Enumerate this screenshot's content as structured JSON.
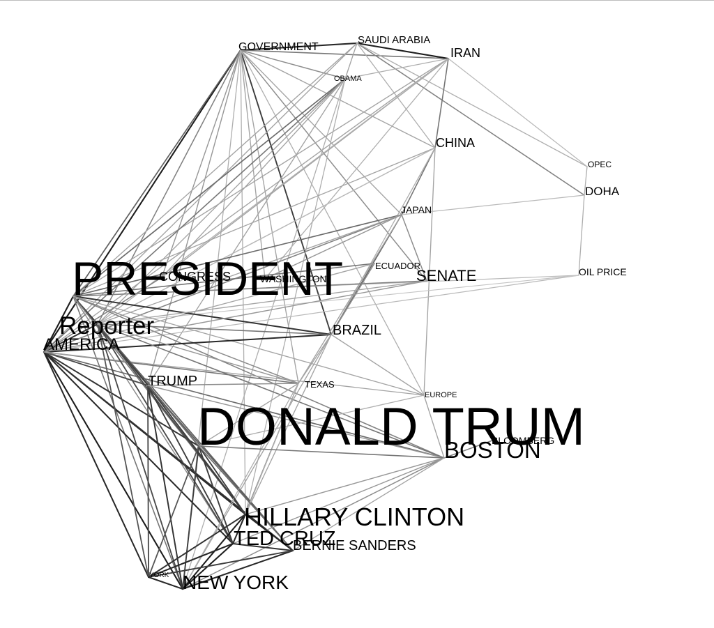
{
  "nodes": [
    {
      "id": "GOVERNMENT",
      "label": "GOVERNMENT"
    },
    {
      "id": "SAUDI_ARABIA",
      "label": "SAUDI ARABIA"
    },
    {
      "id": "IRAN",
      "label": "IRAN"
    },
    {
      "id": "OBAMA",
      "label": "OBAMA"
    },
    {
      "id": "CHINA",
      "label": "CHINA"
    },
    {
      "id": "OPEC",
      "label": "OPEC"
    },
    {
      "id": "DOHA",
      "label": "DOHA"
    },
    {
      "id": "JAPAN",
      "label": "JAPAN"
    },
    {
      "id": "ECUADOR",
      "label": "ECUADOR"
    },
    {
      "id": "PRESIDENT",
      "label": "PRESIDENT"
    },
    {
      "id": "CONGRESS",
      "label": "CONGRESS"
    },
    {
      "id": "WASHINGTON",
      "label": "WASHINGTON"
    },
    {
      "id": "SENATE",
      "label": "SENATE"
    },
    {
      "id": "OIL_PRICE",
      "label": "OIL PRICE"
    },
    {
      "id": "REPORTER",
      "label": "Reporter"
    },
    {
      "id": "BRAZIL",
      "label": "BRAZIL"
    },
    {
      "id": "AMERICA",
      "label": "AMERICA"
    },
    {
      "id": "TRUMP",
      "label": "TRUMP"
    },
    {
      "id": "TEXAS",
      "label": "TEXAS"
    },
    {
      "id": "EUROPE",
      "label": "EUROPE"
    },
    {
      "id": "DONALD_TRUMP",
      "label": "DONALD TRUM"
    },
    {
      "id": "BLOOMBERG",
      "label": "BLOOMBERG"
    },
    {
      "id": "BOSTON",
      "label": "BOSTON"
    },
    {
      "id": "HILLARY_CLINTON",
      "label": "HILLARY CLINTON"
    },
    {
      "id": "TED_CRUZ",
      "label": "TED CRUZ"
    },
    {
      "id": "BERNIE_SANDERS",
      "label": "BERNIE SANDERS"
    },
    {
      "id": "YORK",
      "label": "YORK"
    },
    {
      "id": "NEW_YORK",
      "label": "NEW YORK"
    }
  ],
  "edges": [
    [
      "GOVERNMENT",
      "SAUDI_ARABIA",
      0.85
    ],
    [
      "GOVERNMENT",
      "IRAN",
      0.5
    ],
    [
      "SAUDI_ARABIA",
      "IRAN",
      0.9
    ],
    [
      "GOVERNMENT",
      "AMERICA",
      0.9
    ],
    [
      "GOVERNMENT",
      "PRESIDENT",
      0.6
    ],
    [
      "GOVERNMENT",
      "REPORTER",
      0.45
    ],
    [
      "GOVERNMENT",
      "BRAZIL",
      0.75
    ],
    [
      "GOVERNMENT",
      "SENATE",
      0.4
    ],
    [
      "GOVERNMENT",
      "CONGRESS",
      0.35
    ],
    [
      "GOVERNMENT",
      "WASHINGTON",
      0.3
    ],
    [
      "GOVERNMENT",
      "JAPAN",
      0.3
    ],
    [
      "GOVERNMENT",
      "CHINA",
      0.3
    ],
    [
      "GOVERNMENT",
      "TRUMP",
      0.35
    ],
    [
      "GOVERNMENT",
      "TEXAS",
      0.3
    ],
    [
      "GOVERNMENT",
      "HILLARY_CLINTON",
      0.25
    ],
    [
      "GOVERNMENT",
      "OBAMA",
      0.4
    ],
    [
      "GOVERNMENT",
      "EUROPE",
      0.25
    ],
    [
      "GOVERNMENT",
      "NEW_YORK",
      0.25
    ],
    [
      "SAUDI_ARABIA",
      "OBAMA",
      0.3
    ],
    [
      "SAUDI_ARABIA",
      "PRESIDENT",
      0.3
    ],
    [
      "SAUDI_ARABIA",
      "DOHA",
      0.45
    ],
    [
      "SAUDI_ARABIA",
      "OPEC",
      0.25
    ],
    [
      "SAUDI_ARABIA",
      "AMERICA",
      0.3
    ],
    [
      "SAUDI_ARABIA",
      "CHINA",
      0.25
    ],
    [
      "IRAN",
      "CHINA",
      0.5
    ],
    [
      "IRAN",
      "PRESIDENT",
      0.3
    ],
    [
      "IRAN",
      "OBAMA",
      0.25
    ],
    [
      "IRAN",
      "AMERICA",
      0.3
    ],
    [
      "IRAN",
      "CONGRESS",
      0.3
    ],
    [
      "IRAN",
      "OPEC",
      0.2
    ],
    [
      "IRAN",
      "REPORTER",
      0.25
    ],
    [
      "IRAN",
      "WASHINGTON",
      0.25
    ],
    [
      "OBAMA",
      "PRESIDENT",
      0.55
    ],
    [
      "OBAMA",
      "AMERICA",
      0.5
    ],
    [
      "OBAMA",
      "TRUMP",
      0.3
    ],
    [
      "OBAMA",
      "REPORTER",
      0.3
    ],
    [
      "OBAMA",
      "CONGRESS",
      0.3
    ],
    [
      "OBAMA",
      "NEW_YORK",
      0.25
    ],
    [
      "OBAMA",
      "HILLARY_CLINTON",
      0.25
    ],
    [
      "CHINA",
      "JAPAN",
      0.5
    ],
    [
      "CHINA",
      "PRESIDENT",
      0.3
    ],
    [
      "CHINA",
      "BRAZIL",
      0.25
    ],
    [
      "CHINA",
      "AMERICA",
      0.25
    ],
    [
      "CHINA",
      "EUROPE",
      0.3
    ],
    [
      "CHINA",
      "REPORTER",
      0.2
    ],
    [
      "OPEC",
      "DOHA",
      0.25
    ],
    [
      "DOHA",
      "OIL_PRICE",
      0.25
    ],
    [
      "DOHA",
      "JAPAN",
      0.2
    ],
    [
      "OIL_PRICE",
      "PRESIDENT",
      0.2
    ],
    [
      "OIL_PRICE",
      "AMERICA",
      0.2
    ],
    [
      "OIL_PRICE",
      "REPORTER",
      0.15
    ],
    [
      "JAPAN",
      "PRESIDENT",
      0.55
    ],
    [
      "JAPAN",
      "BRAZIL",
      0.55
    ],
    [
      "JAPAN",
      "AMERICA",
      0.45
    ],
    [
      "JAPAN",
      "SENATE",
      0.4
    ],
    [
      "JAPAN",
      "TEXAS",
      0.3
    ],
    [
      "JAPAN",
      "REPORTER",
      0.3
    ],
    [
      "JAPAN",
      "WASHINGTON",
      0.35
    ],
    [
      "ECUADOR",
      "PRESIDENT",
      0.5
    ],
    [
      "ECUADOR",
      "BRAZIL",
      0.4
    ],
    [
      "ECUADOR",
      "AMERICA",
      0.3
    ],
    [
      "PRESIDENT",
      "SENATE",
      0.45
    ],
    [
      "PRESIDENT",
      "AMERICA",
      0.9
    ],
    [
      "PRESIDENT",
      "REPORTER",
      0.85
    ],
    [
      "PRESIDENT",
      "BRAZIL",
      0.8
    ],
    [
      "PRESIDENT",
      "TRUMP",
      0.5
    ],
    [
      "PRESIDENT",
      "TEXAS",
      0.4
    ],
    [
      "PRESIDENT",
      "DONALD_TRUMP",
      0.7
    ],
    [
      "PRESIDENT",
      "HILLARY_CLINTON",
      0.5
    ],
    [
      "PRESIDENT",
      "NEW_YORK",
      0.5
    ],
    [
      "PRESIDENT",
      "TED_CRUZ",
      0.4
    ],
    [
      "PRESIDENT",
      "BOSTON",
      0.45
    ],
    [
      "PRESIDENT",
      "EUROPE",
      0.3
    ],
    [
      "AMERICA",
      "REPORTER",
      0.8
    ],
    [
      "AMERICA",
      "BRAZIL",
      0.85
    ],
    [
      "AMERICA",
      "TRUMP",
      0.7
    ],
    [
      "AMERICA",
      "TEXAS",
      0.5
    ],
    [
      "AMERICA",
      "SENATE",
      0.35
    ],
    [
      "AMERICA",
      "DONALD_TRUMP",
      0.8
    ],
    [
      "AMERICA",
      "HILLARY_CLINTON",
      0.85
    ],
    [
      "AMERICA",
      "TED_CRUZ",
      0.85
    ],
    [
      "AMERICA",
      "BERNIE_SANDERS",
      0.8
    ],
    [
      "AMERICA",
      "NEW_YORK",
      0.9
    ],
    [
      "AMERICA",
      "YORK",
      0.85
    ],
    [
      "AMERICA",
      "BOSTON",
      0.55
    ],
    [
      "AMERICA",
      "EUROPE",
      0.3
    ],
    [
      "AMERICA",
      "CONGRESS",
      0.45
    ],
    [
      "REPORTER",
      "BRAZIL",
      0.5
    ],
    [
      "REPORTER",
      "TRUMP",
      0.6
    ],
    [
      "REPORTER",
      "DONALD_TRUMP",
      0.75
    ],
    [
      "REPORTER",
      "HILLARY_CLINTON",
      0.7
    ],
    [
      "REPORTER",
      "NEW_YORK",
      0.7
    ],
    [
      "REPORTER",
      "TED_CRUZ",
      0.7
    ],
    [
      "REPORTER",
      "BERNIE_SANDERS",
      0.6
    ],
    [
      "REPORTER",
      "YORK",
      0.65
    ],
    [
      "REPORTER",
      "BOSTON",
      0.5
    ],
    [
      "REPORTER",
      "TEXAS",
      0.35
    ],
    [
      "REPORTER",
      "SENATE",
      0.3
    ],
    [
      "BRAZIL",
      "TEXAS",
      0.3
    ],
    [
      "BRAZIL",
      "EUROPE",
      0.3
    ],
    [
      "BRAZIL",
      "NEW_YORK",
      0.3
    ],
    [
      "BRAZIL",
      "HILLARY_CLINTON",
      0.3
    ],
    [
      "TRUMP",
      "DONALD_TRUMP",
      0.5
    ],
    [
      "TRUMP",
      "HILLARY_CLINTON",
      0.75
    ],
    [
      "TRUMP",
      "TED_CRUZ",
      0.75
    ],
    [
      "TRUMP",
      "NEW_YORK",
      0.8
    ],
    [
      "TRUMP",
      "BERNIE_SANDERS",
      0.6
    ],
    [
      "TRUMP",
      "YORK",
      0.7
    ],
    [
      "TRUMP",
      "TEXAS",
      0.4
    ],
    [
      "TRUMP",
      "BOSTON",
      0.35
    ],
    [
      "TEXAS",
      "TED_CRUZ",
      0.4
    ],
    [
      "TEXAS",
      "DONALD_TRUMP",
      0.3
    ],
    [
      "TEXAS",
      "HILLARY_CLINTON",
      0.25
    ],
    [
      "TEXAS",
      "NEW_YORK",
      0.25
    ],
    [
      "EUROPE",
      "DONALD_TRUMP",
      0.25
    ],
    [
      "EUROPE",
      "BOSTON",
      0.3
    ],
    [
      "DONALD_TRUMP",
      "HILLARY_CLINTON",
      0.75
    ],
    [
      "DONALD_TRUMP",
      "TED_CRUZ",
      0.75
    ],
    [
      "DONALD_TRUMP",
      "NEW_YORK",
      0.75
    ],
    [
      "DONALD_TRUMP",
      "BERNIE_SANDERS",
      0.55
    ],
    [
      "DONALD_TRUMP",
      "YORK",
      0.65
    ],
    [
      "DONALD_TRUMP",
      "BOSTON",
      0.5
    ],
    [
      "BOSTON",
      "BLOOMBERG",
      0.45
    ],
    [
      "BOSTON",
      "HILLARY_CLINTON",
      0.35
    ],
    [
      "BOSTON",
      "NEW_YORK",
      0.4
    ],
    [
      "BOSTON",
      "TED_CRUZ",
      0.35
    ],
    [
      "BOSTON",
      "BERNIE_SANDERS",
      0.3
    ],
    [
      "HILLARY_CLINTON",
      "TED_CRUZ",
      0.85
    ],
    [
      "HILLARY_CLINTON",
      "BERNIE_SANDERS",
      0.85
    ],
    [
      "HILLARY_CLINTON",
      "NEW_YORK",
      0.9
    ],
    [
      "HILLARY_CLINTON",
      "YORK",
      0.8
    ],
    [
      "TED_CRUZ",
      "BERNIE_SANDERS",
      0.8
    ],
    [
      "TED_CRUZ",
      "NEW_YORK",
      0.9
    ],
    [
      "TED_CRUZ",
      "YORK",
      0.85
    ],
    [
      "BERNIE_SANDERS",
      "NEW_YORK",
      0.85
    ],
    [
      "BERNIE_SANDERS",
      "YORK",
      0.75
    ],
    [
      "YORK",
      "NEW_YORK",
      0.85
    ]
  ]
}
